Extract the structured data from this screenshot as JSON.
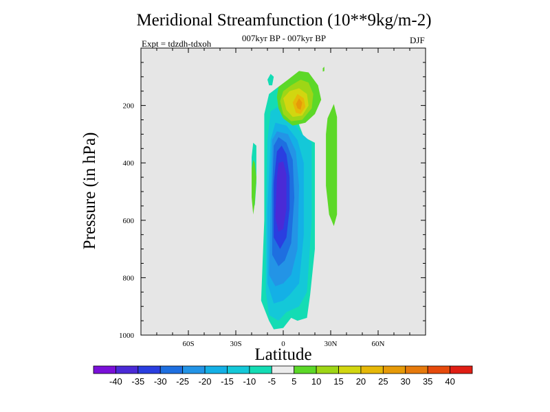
{
  "chart_data": {
    "type": "contour",
    "title": "Meridional Streamfunction (10**9kg/m-2)",
    "subtitle": "007kyr BP - 007kyr BP",
    "left_label": "Expt = tdzdh-tdxoh",
    "right_label": "DJF",
    "xlabel": "Latitude",
    "ylabel": "Pressure (in hPa)",
    "xlim": [
      -90,
      90
    ],
    "ylim": [
      1000,
      0
    ],
    "x_ticks": [
      {
        "value": -60,
        "label": "60S"
      },
      {
        "value": -30,
        "label": "30S"
      },
      {
        "value": 0,
        "label": "0"
      },
      {
        "value": 30,
        "label": "30N"
      },
      {
        "value": 60,
        "label": "60N"
      }
    ],
    "y_ticks": [
      {
        "value": 200,
        "label": "200"
      },
      {
        "value": 400,
        "label": "400"
      },
      {
        "value": 600,
        "label": "600"
      },
      {
        "value": 800,
        "label": "800"
      },
      {
        "value": 1000,
        "label": "1000"
      }
    ],
    "colorbar": {
      "labels": [
        "-40",
        "-35",
        "-30",
        "-25",
        "-20",
        "-15",
        "-10",
        "-5",
        "5",
        "10",
        "15",
        "20",
        "25",
        "30",
        "35",
        "40"
      ],
      "colors": [
        "#7a10d8",
        "#4a2ad6",
        "#2a3ee0",
        "#1e6fe0",
        "#2394e6",
        "#14b0e6",
        "#14c8d8",
        "#14dcb4",
        "#ececec",
        "#5cd828",
        "#9ed616",
        "#d2d610",
        "#e6b808",
        "#e69a08",
        "#e67a0c",
        "#e64a0c",
        "#e01e14"
      ]
    },
    "regions": [
      {
        "name": "neg-5",
        "level": -5,
        "color": "#14dcb4",
        "points": [
          [
            -14,
            880
          ],
          [
            -12,
            600
          ],
          [
            -12,
            230
          ],
          [
            -9,
            160
          ],
          [
            -3,
            135
          ],
          [
            0,
            180
          ],
          [
            5,
            195
          ],
          [
            13,
            310
          ],
          [
            20,
            330
          ],
          [
            20,
            540
          ],
          [
            20,
            700
          ],
          [
            17,
            860
          ],
          [
            15,
            940
          ],
          [
            9,
            950
          ],
          [
            5,
            940
          ],
          [
            0,
            975
          ],
          [
            -6,
            980
          ],
          [
            -9,
            950
          ]
        ]
      },
      {
        "name": "neg-5-small-left",
        "level": -5,
        "color": "#14dcb4",
        "points": [
          [
            -20,
            380
          ],
          [
            -19,
            330
          ],
          [
            -17,
            340
          ],
          [
            -17,
            470
          ],
          [
            -18,
            550
          ],
          [
            -20,
            500
          ]
        ]
      },
      {
        "name": "neg-5-small-top",
        "level": -5,
        "color": "#14dcb4",
        "points": [
          [
            -10,
            110
          ],
          [
            -8,
            90
          ],
          [
            -6,
            100
          ],
          [
            -7,
            130
          ],
          [
            -9,
            130
          ]
        ]
      },
      {
        "name": "neg-10",
        "level": -10,
        "color": "#14c8d8",
        "points": [
          [
            -11,
            850
          ],
          [
            -11,
            600
          ],
          [
            -10,
            320
          ],
          [
            -8,
            220
          ],
          [
            -2,
            200
          ],
          [
            5,
            250
          ],
          [
            12,
            300
          ],
          [
            18,
            330
          ],
          [
            18,
            600
          ],
          [
            15,
            850
          ],
          [
            10,
            900
          ],
          [
            2,
            920
          ],
          [
            -3,
            950
          ],
          [
            -9,
            930
          ]
        ]
      },
      {
        "name": "neg-15",
        "level": -15,
        "color": "#14b0e6",
        "points": [
          [
            -10,
            820
          ],
          [
            -10,
            560
          ],
          [
            -8,
            320
          ],
          [
            -5,
            260
          ],
          [
            2,
            270
          ],
          [
            9,
            320
          ],
          [
            13,
            400
          ],
          [
            13,
            650
          ],
          [
            10,
            820
          ],
          [
            4,
            860
          ],
          [
            0,
            880
          ],
          [
            -6,
            890
          ]
        ]
      },
      {
        "name": "neg-20",
        "level": -20,
        "color": "#2394e6",
        "points": [
          [
            -9,
            790
          ],
          [
            -8,
            550
          ],
          [
            -7,
            320
          ],
          [
            -4,
            290
          ],
          [
            3,
            300
          ],
          [
            8,
            360
          ],
          [
            10,
            480
          ],
          [
            9,
            700
          ],
          [
            5,
            790
          ],
          [
            0,
            820
          ],
          [
            -5,
            830
          ]
        ]
      },
      {
        "name": "neg-25",
        "level": -25,
        "color": "#1e6fe0",
        "points": [
          [
            -7,
            720
          ],
          [
            -7,
            500
          ],
          [
            -6,
            340
          ],
          [
            -3,
            310
          ],
          [
            2,
            330
          ],
          [
            6,
            390
          ],
          [
            7,
            520
          ],
          [
            5,
            680
          ],
          [
            1,
            740
          ],
          [
            -3,
            760
          ]
        ]
      },
      {
        "name": "neg-30",
        "level": -30,
        "color": "#2a3ee0",
        "points": [
          [
            -6,
            660
          ],
          [
            -6,
            470
          ],
          [
            -4,
            360
          ],
          [
            -1,
            340
          ],
          [
            2,
            370
          ],
          [
            4,
            450
          ],
          [
            4,
            560
          ],
          [
            2,
            660
          ],
          [
            -2,
            700
          ]
        ]
      },
      {
        "name": "neg-35",
        "level": -35,
        "color": "#4a2ad6",
        "points": [
          [
            -5,
            590
          ],
          [
            -4,
            450
          ],
          [
            -3,
            400
          ],
          [
            0,
            395
          ],
          [
            2,
            440
          ],
          [
            2,
            560
          ],
          [
            0,
            630
          ],
          [
            -3,
            640
          ]
        ]
      },
      {
        "name": "pos-5-main",
        "level": 5,
        "color": "#5cd828",
        "points": [
          [
            -4,
            170
          ],
          [
            -3,
            135
          ],
          [
            3,
            110
          ],
          [
            10,
            80
          ],
          [
            16,
            85
          ],
          [
            22,
            130
          ],
          [
            24,
            180
          ],
          [
            20,
            230
          ],
          [
            14,
            260
          ],
          [
            6,
            270
          ],
          [
            0,
            245
          ],
          [
            -3,
            210
          ]
        ]
      },
      {
        "name": "pos-5-right",
        "level": 5,
        "color": "#5cd828",
        "points": [
          [
            28,
            245
          ],
          [
            32,
            195
          ],
          [
            34,
            240
          ],
          [
            34,
            400
          ],
          [
            34,
            580
          ],
          [
            32,
            620
          ],
          [
            29,
            580
          ],
          [
            27,
            480
          ],
          [
            27,
            300
          ]
        ]
      },
      {
        "name": "pos-5-left",
        "level": 5,
        "color": "#5cd828",
        "points": [
          [
            -20,
            420
          ],
          [
            -19,
            390
          ],
          [
            -18,
            400
          ],
          [
            -17,
            450
          ],
          [
            -18,
            540
          ],
          [
            -19,
            580
          ],
          [
            -20,
            520
          ]
        ]
      },
      {
        "name": "pos-10",
        "level": 10,
        "color": "#9ed616",
        "points": [
          [
            -2,
            185
          ],
          [
            0,
            150
          ],
          [
            5,
            130
          ],
          [
            11,
            110
          ],
          [
            16,
            120
          ],
          [
            19,
            160
          ],
          [
            18,
            210
          ],
          [
            12,
            250
          ],
          [
            5,
            255
          ],
          [
            0,
            230
          ]
        ]
      },
      {
        "name": "pos-15",
        "level": 15,
        "color": "#d2d610",
        "points": [
          [
            0,
            175
          ],
          [
            4,
            150
          ],
          [
            10,
            140
          ],
          [
            15,
            160
          ],
          [
            16,
            200
          ],
          [
            12,
            235
          ],
          [
            6,
            240
          ],
          [
            2,
            215
          ]
        ]
      },
      {
        "name": "pos-20",
        "level": 20,
        "color": "#e6b808",
        "points": [
          [
            6,
            190
          ],
          [
            9,
            160
          ],
          [
            13,
            175
          ],
          [
            14,
            205
          ],
          [
            11,
            230
          ],
          [
            8,
            225
          ]
        ]
      },
      {
        "name": "pos-25",
        "level": 25,
        "color": "#e69a08",
        "points": [
          [
            8,
            195
          ],
          [
            10,
            175
          ],
          [
            12,
            190
          ],
          [
            11,
            215
          ],
          [
            9,
            210
          ]
        ]
      },
      {
        "name": "pos-5-speck",
        "level": 5,
        "color": "#5cd828",
        "points": [
          [
            25,
            70
          ],
          [
            26,
            65
          ],
          [
            26,
            80
          ],
          [
            25,
            82
          ]
        ]
      }
    ]
  }
}
